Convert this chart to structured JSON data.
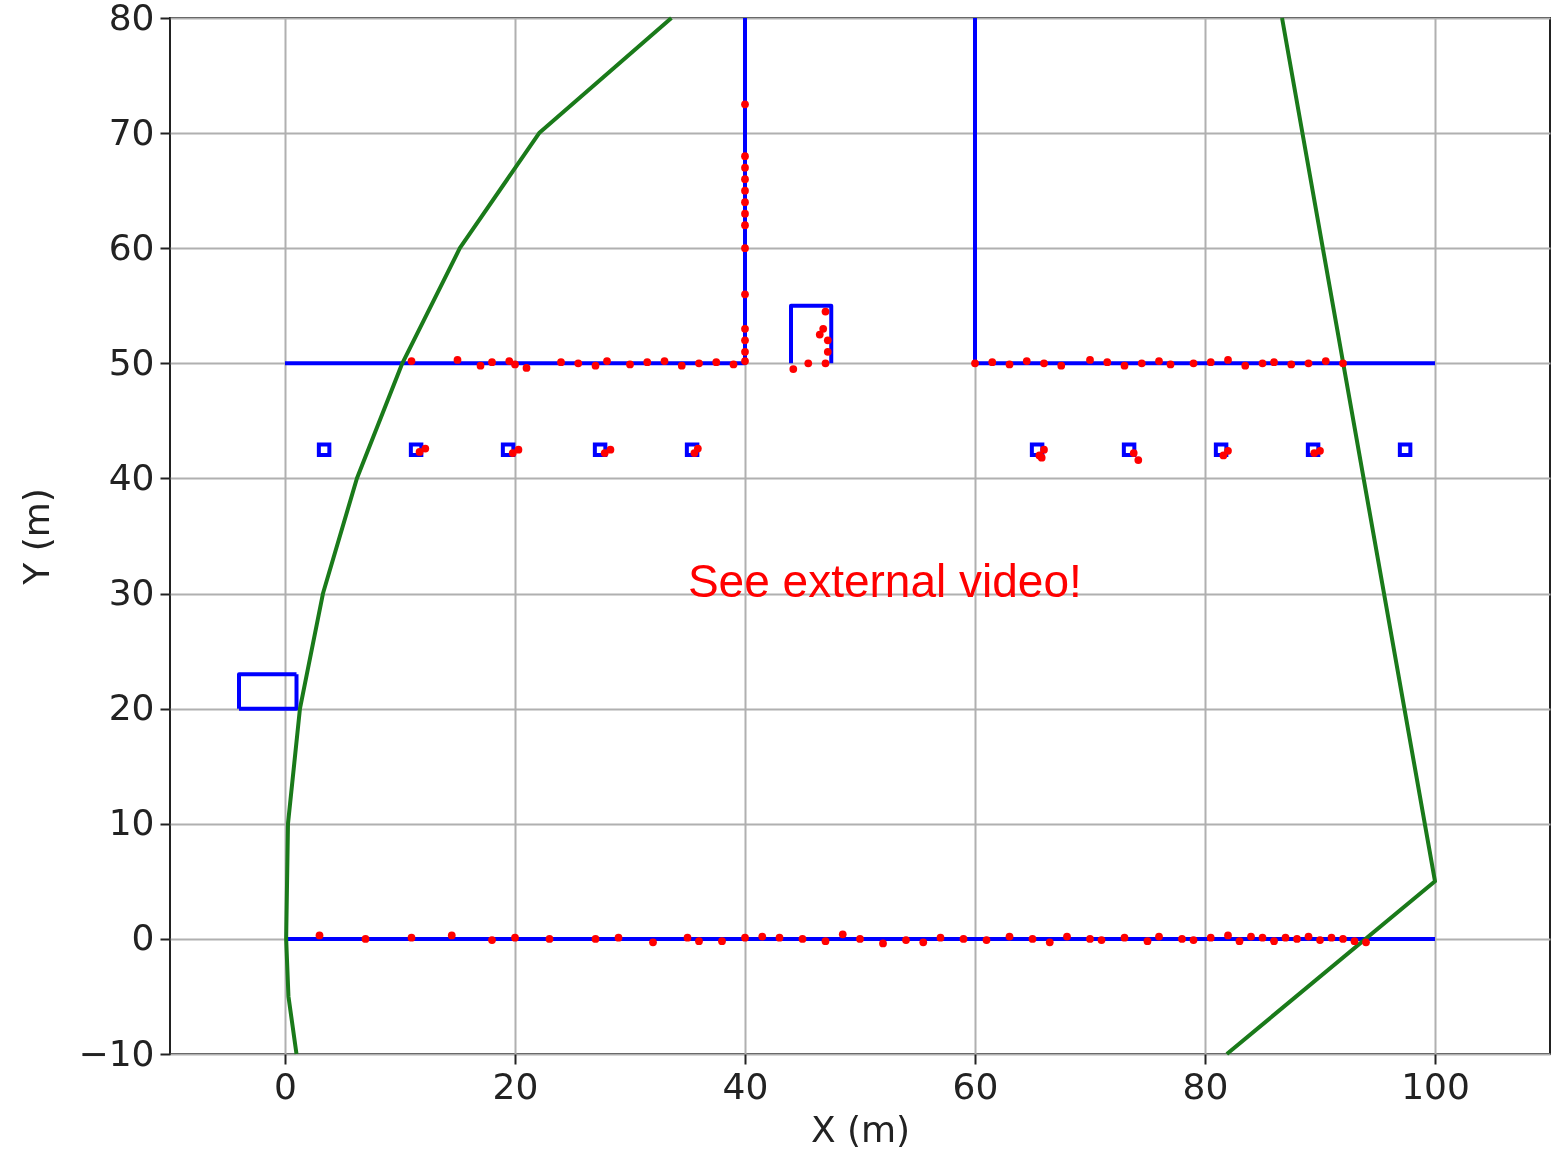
{
  "chart_data": {
    "type": "line",
    "xlabel": "X (m)",
    "ylabel": "Y (m)",
    "xlim": [
      -10,
      110
    ],
    "ylim": [
      -10,
      80
    ],
    "xticks": [
      0,
      20,
      40,
      60,
      80,
      100
    ],
    "yticks": [
      -10,
      0,
      10,
      20,
      30,
      40,
      50,
      60,
      70,
      80
    ],
    "grid": true,
    "annotations": [
      "See external video!"
    ],
    "series": [
      {
        "color": "#0000ff",
        "x": [
          0,
          100
        ],
        "values": [
          0,
          0
        ]
      },
      {
        "color": "#0000ff",
        "x": [
          0,
          40,
          40
        ],
        "values": [
          50,
          50,
          80
        ]
      },
      {
        "color": "#0000ff",
        "x": [
          60,
          60,
          100
        ],
        "values": [
          80,
          50,
          50
        ]
      },
      {
        "color": "#0000ff",
        "x": [
          44,
          44,
          47.5,
          47.5
        ],
        "values": [
          50,
          55,
          55,
          50
        ]
      },
      {
        "color": "#0000ff",
        "x": [
          -4,
          1,
          1
        ],
        "values": [
          20,
          20,
          23
        ]
      },
      {
        "color": "#0000ff",
        "x": [
          1,
          -4,
          -4
        ],
        "values": [
          23,
          23,
          20
        ]
      },
      {
        "type": "scatter",
        "marker": "square",
        "color": "#0000ff",
        "x": [
          3.4,
          11.4,
          19.4,
          27.4,
          35.4,
          65.4,
          73.4,
          81.4,
          89.4,
          97.4
        ],
        "values": [
          42.5,
          42.5,
          42.5,
          42.5,
          42.5,
          42.5,
          42.5,
          42.5,
          42.5,
          42.5
        ]
      },
      {
        "color": "#1a7a1a",
        "x": [
          1,
          0.3,
          0.1,
          0.26,
          1.3,
          3.3,
          6.25,
          10.2,
          15.2,
          22.1,
          33.6
        ],
        "values": [
          -10,
          -5,
          0,
          10,
          20,
          30,
          40,
          50,
          60,
          70,
          80
        ]
      },
      {
        "color": "#1a7a1a",
        "x": [
          86.7,
          100,
          81.9
        ],
        "values": [
          80,
          5,
          -10
        ]
      },
      {
        "type": "scatter",
        "marker": "circle",
        "color": "#ff0000",
        "x": [
          3,
          7,
          11,
          14.5,
          18,
          20,
          23,
          27,
          29,
          32,
          35,
          36,
          38,
          40,
          41.5,
          43,
          45,
          47,
          48.5,
          50,
          52,
          54,
          55.5,
          57,
          59,
          61,
          63,
          65,
          66.5,
          68,
          70,
          71,
          73,
          75,
          76,
          78,
          79,
          80.5,
          82,
          83,
          84,
          85,
          86,
          87,
          88,
          89,
          90,
          91,
          92,
          93,
          94,
          11,
          15,
          17,
          18,
          19.5,
          20,
          21,
          24,
          25.5,
          27,
          28,
          30,
          31.5,
          33,
          34.5,
          36,
          37.5,
          39,
          40,
          60,
          61.5,
          63,
          64.5,
          66,
          67.5,
          70,
          71.5,
          73,
          74.5,
          76,
          77,
          79,
          80.5,
          82,
          83.5,
          85,
          86,
          87.5,
          89,
          90.5,
          92,
          40,
          40,
          40,
          40,
          40,
          40,
          40,
          40,
          40,
          40,
          40,
          40,
          40,
          44.2,
          45.5,
          47,
          47.2,
          47.2,
          46.8,
          47,
          46.5,
          11.7,
          12.2,
          19.8,
          20.3,
          27.8,
          28.3,
          35.6,
          35.9,
          65.6,
          66,
          65.8,
          73.8,
          74.2,
          81.6,
          82,
          89.5,
          90
        ],
        "values": [
          0.3,
          0,
          0.1,
          0.3,
          -0.1,
          0.1,
          0,
          0,
          0.1,
          -0.3,
          0.1,
          -0.2,
          -0.2,
          0.1,
          0.2,
          0.1,
          0,
          -0.2,
          0.4,
          0,
          -0.4,
          -0.1,
          -0.3,
          0.1,
          0,
          -0.1,
          0.2,
          0,
          -0.3,
          0.2,
          0,
          -0.1,
          0.1,
          -0.2,
          0.2,
          0,
          -0.1,
          0.1,
          0.3,
          -0.2,
          0.2,
          0.1,
          -0.2,
          0.1,
          0,
          0.2,
          -0.1,
          0.1,
          0,
          -0.2,
          -0.3,
          50.2,
          50.3,
          49.8,
          50.1,
          50.2,
          49.9,
          49.6,
          50.1,
          50,
          49.8,
          50.2,
          49.9,
          50.1,
          50.2,
          49.8,
          50,
          50.1,
          49.9,
          50.2,
          50,
          50.1,
          49.9,
          50.2,
          50,
          49.8,
          50.3,
          50.1,
          49.8,
          50,
          50.2,
          49.9,
          50,
          50.1,
          50.3,
          49.8,
          50,
          50.1,
          49.9,
          50,
          50.2,
          50,
          51,
          52,
          53,
          56,
          60,
          62,
          63,
          64,
          65,
          66,
          67,
          68,
          72.5,
          49.5,
          50,
          50,
          51,
          52,
          53,
          54.5,
          52.5,
          42.3,
          42.6,
          42.2,
          42.5,
          42.2,
          42.5,
          42.2,
          42.6,
          42,
          42.5,
          41.8,
          42.2,
          41.6,
          42,
          42.4,
          42.2,
          42.4
        ]
      }
    ]
  }
}
